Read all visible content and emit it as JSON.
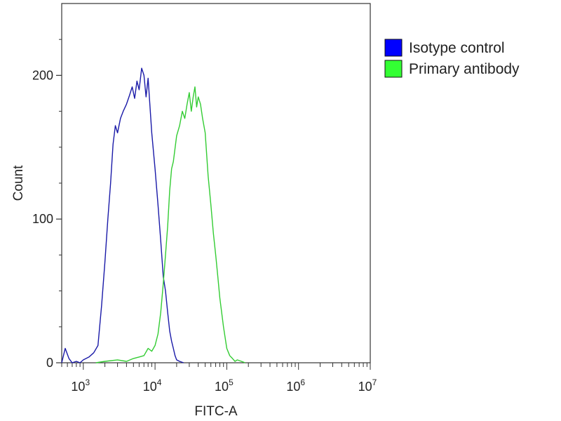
{
  "chart_data": {
    "type": "line",
    "title": "",
    "xlabel": "FITC-A",
    "ylabel": "Count",
    "x_scale": "log",
    "xlim": [
      500,
      10000000
    ],
    "ylim": [
      0,
      250
    ],
    "x_ticks": [
      {
        "value": 1000,
        "base": "10",
        "exp": "3"
      },
      {
        "value": 10000,
        "base": "10",
        "exp": "4"
      },
      {
        "value": 100000,
        "base": "10",
        "exp": "5"
      },
      {
        "value": 1000000,
        "base": "10",
        "exp": "6"
      },
      {
        "value": 10000000,
        "base": "10",
        "exp": "7"
      }
    ],
    "y_ticks": [
      {
        "value": 0,
        "label": "0"
      },
      {
        "value": 100,
        "label": "100"
      },
      {
        "value": 200,
        "label": "200"
      }
    ],
    "legend_position": "top-right",
    "series": [
      {
        "name": "Isotype control",
        "color": "#1a1aa8",
        "legend_color": "#0000ff",
        "x": [
          500,
          560,
          630,
          700,
          800,
          900,
          1000,
          1200,
          1400,
          1600,
          1800,
          2000,
          2200,
          2400,
          2600,
          2800,
          3000,
          3300,
          3600,
          4000,
          4400,
          4800,
          5200,
          5600,
          6000,
          6500,
          7000,
          7500,
          8000,
          9000,
          10000,
          11000,
          12000,
          13000,
          14000,
          15000,
          16000,
          17000,
          18000,
          19000,
          20000,
          22000,
          25000
        ],
        "y": [
          0,
          10,
          3,
          0,
          1,
          0,
          2,
          4,
          7,
          12,
          40,
          70,
          100,
          125,
          152,
          165,
          160,
          170,
          175,
          180,
          186,
          192,
          184,
          196,
          190,
          205,
          200,
          185,
          198,
          160,
          135,
          110,
          85,
          60,
          50,
          35,
          22,
          15,
          10,
          5,
          2,
          1,
          0
        ]
      },
      {
        "name": "Primary antibody",
        "color": "#33cc33",
        "legend_color": "#33ff33",
        "x": [
          1500,
          2000,
          3000,
          4000,
          5000,
          6000,
          7000,
          8000,
          9000,
          10000,
          11000,
          12000,
          13000,
          14000,
          15000,
          16000,
          17000,
          18000,
          20000,
          22000,
          24000,
          26000,
          28000,
          30000,
          32000,
          34000,
          36000,
          38000,
          40000,
          43000,
          46000,
          50000,
          55000,
          60000,
          65000,
          70000,
          75000,
          80000,
          90000,
          100000,
          110000,
          120000,
          130000,
          140000,
          160000,
          180000
        ],
        "y": [
          0,
          1,
          2,
          1,
          3,
          4,
          5,
          10,
          8,
          12,
          20,
          35,
          55,
          75,
          95,
          120,
          135,
          140,
          158,
          165,
          175,
          170,
          180,
          188,
          175,
          185,
          192,
          178,
          185,
          180,
          170,
          160,
          130,
          110,
          90,
          75,
          60,
          45,
          25,
          10,
          5,
          3,
          1,
          2,
          1,
          0
        ]
      }
    ]
  }
}
